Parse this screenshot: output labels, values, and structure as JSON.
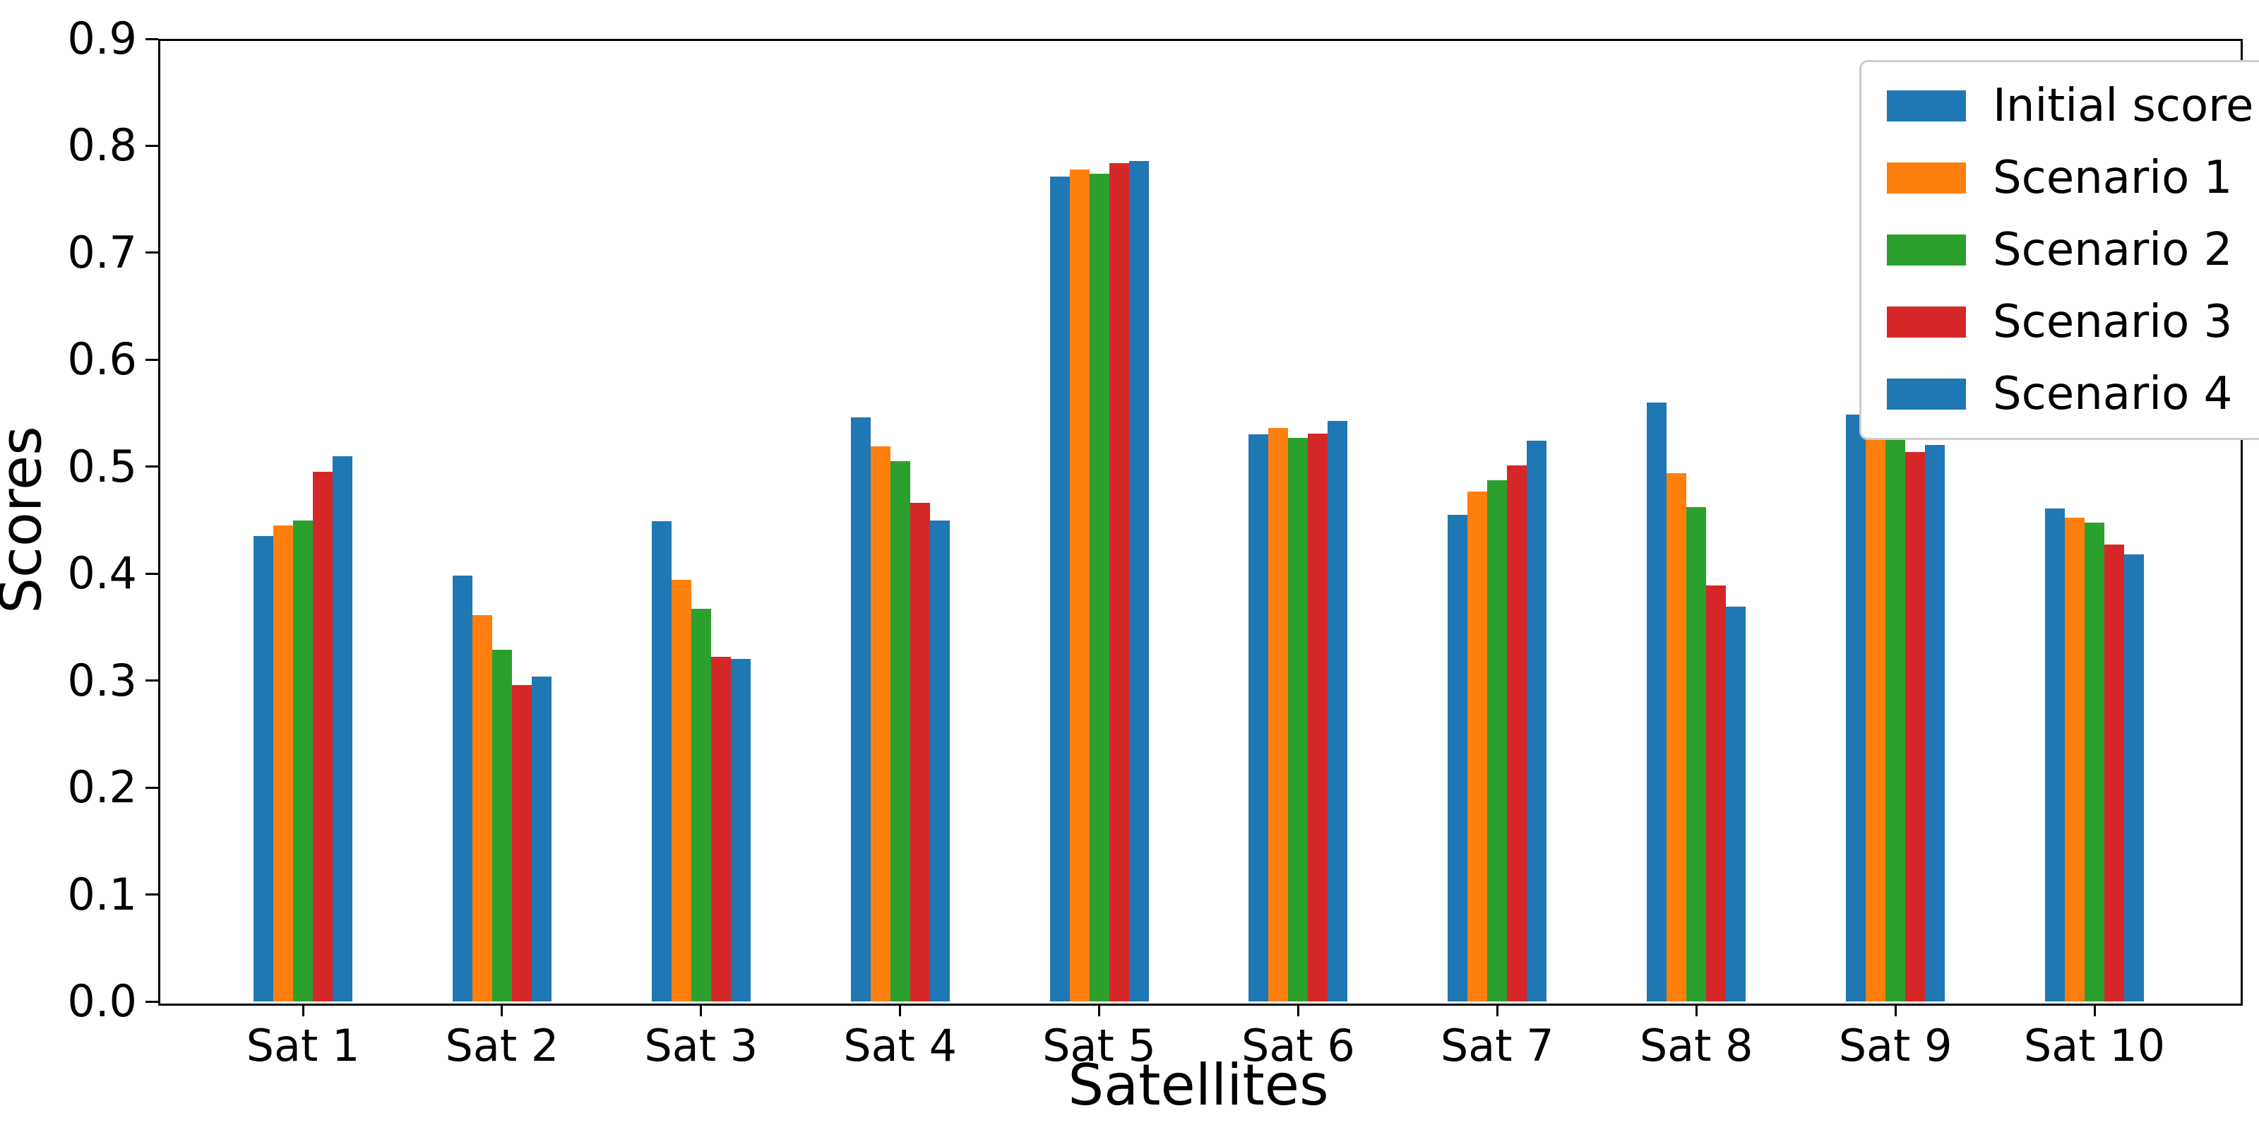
{
  "chart_data": {
    "type": "bar",
    "title": "",
    "xlabel": "Satellites",
    "ylabel": "Scores",
    "categories": [
      "Sat 1",
      "Sat 2",
      "Sat 3",
      "Sat 4",
      "Sat 5",
      "Sat 6",
      "Sat 7",
      "Sat 8",
      "Sat 9",
      "Sat 10"
    ],
    "series": [
      {
        "name": "Initial score",
        "color": "#1f77b4",
        "values": [
          0.435,
          0.398,
          0.449,
          0.546,
          0.771,
          0.53,
          0.455,
          0.56,
          0.549,
          0.461
        ]
      },
      {
        "name": "Scenario 1",
        "color": "#ff7f0e",
        "values": [
          0.445,
          0.361,
          0.394,
          0.519,
          0.778,
          0.536,
          0.477,
          0.494,
          0.537,
          0.452
        ]
      },
      {
        "name": "Scenario 2",
        "color": "#2ca02c",
        "values": [
          0.45,
          0.329,
          0.367,
          0.505,
          0.774,
          0.527,
          0.487,
          0.462,
          0.54,
          0.448
        ]
      },
      {
        "name": "Scenario 3",
        "color": "#d62728",
        "values": [
          0.495,
          0.296,
          0.322,
          0.466,
          0.784,
          0.531,
          0.501,
          0.389,
          0.514,
          0.427
        ]
      },
      {
        "name": "Scenario 4",
        "color": "#1f77b4",
        "values": [
          0.51,
          0.304,
          0.32,
          0.45,
          0.786,
          0.543,
          0.524,
          0.369,
          0.52,
          0.418
        ]
      }
    ],
    "ylim": [
      0.0,
      0.9
    ],
    "yticks": [
      "0.0",
      "0.1",
      "0.2",
      "0.3",
      "0.4",
      "0.5",
      "0.6",
      "0.7",
      "0.8",
      "0.9"
    ],
    "grid": false,
    "legend_position": "upper right",
    "axis_color": "#000000",
    "legend_border_color": "#cccccc"
  }
}
